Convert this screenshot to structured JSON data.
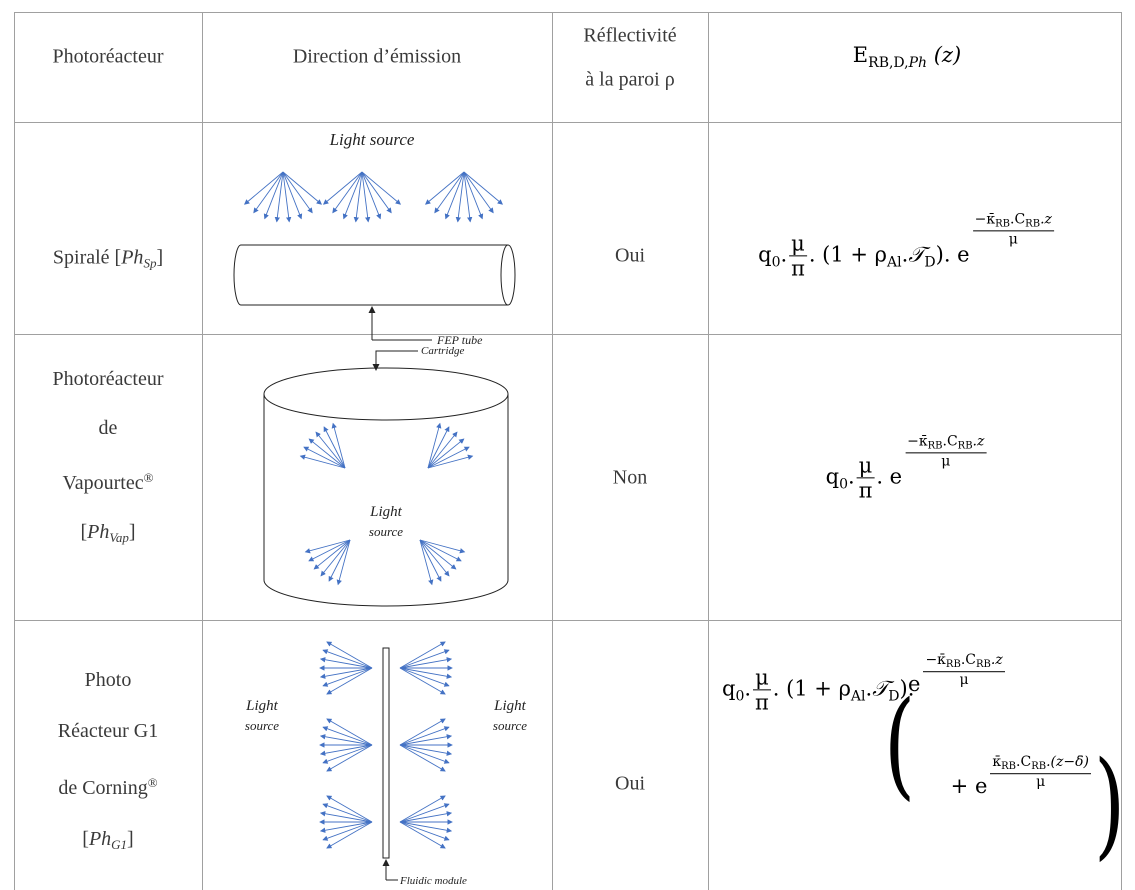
{
  "header": {
    "photoreactor": "Photoréacteur",
    "direction": "Direction d’émission",
    "reflectivity": [
      "Réflectivité",
      "à la paroi ρ"
    ],
    "irradiance": {
      "symbol": "E",
      "subscript": "RB,D,",
      "subscript_italic": "Ph",
      "argument": "(z)"
    }
  },
  "rows": [
    {
      "name_lines": [
        "Spiralé"
      ],
      "code_open": "[",
      "code": "Ph",
      "code_sub": "Sp",
      "code_close": "]",
      "diagram": {
        "light_source": "Light source",
        "tube": "FEP tube"
      },
      "reflective": "Oui",
      "formula": {
        "q": "q",
        "q_sub": "0",
        "dot": ".",
        "frac_num": "μ",
        "frac_den": "π",
        "mid": ". (1 + ρ",
        "rho_sub": "Al",
        "dot2": ".",
        "t": "𝒯",
        "t_sub": "D",
        "end": "). e",
        "exp_num": "−κ̄",
        "exp_sub1": "RB",
        "exp_c": ".C",
        "exp_sub2": "RB",
        "exp_z": ".z",
        "exp_den": "μ"
      }
    },
    {
      "name_lines": [
        "Photoréacteur",
        "de",
        "Vapourtec"
      ],
      "registered": "®",
      "code_open": "[",
      "code": "Ph",
      "code_sub": "Vap",
      "code_close": "]",
      "diagram": {
        "cartridge": "Cartridge",
        "light": "Light",
        "source": "source"
      },
      "reflective": "Non",
      "formula": {
        "q": "q",
        "q_sub": "0",
        "dot": ".",
        "frac_num": "μ",
        "frac_den": "π",
        "end": ". e",
        "exp_num": "−κ̄",
        "exp_sub1": "RB",
        "exp_c": ".C",
        "exp_sub2": "RB",
        "exp_z": ".z",
        "exp_den": "μ"
      }
    },
    {
      "name_lines": [
        "Photo",
        "Réacteur G1",
        "de Corning"
      ],
      "registered": "®",
      "code_open": "[",
      "code": "Ph",
      "code_sub": "G1",
      "code_close": "]",
      "diagram": {
        "light_left": "Light",
        "source_left": "source",
        "light_right": "Light",
        "source_right": "source",
        "module": "Fluidic module"
      },
      "reflective": "Oui",
      "formula": {
        "q": "q",
        "q_sub": "0",
        "dot": ".",
        "frac_num": "μ",
        "frac_den": "π",
        "mid": ". (1 + ρ",
        "rho_sub": "Al",
        "dot2": ".",
        "t": "𝒯",
        "t_sub": "D",
        "end": ").",
        "open": "(",
        "e1": "e",
        "exp_num": "−κ̄",
        "exp_sub1": "RB",
        "exp_c": ".C",
        "exp_sub2": "RB",
        "exp_z": ".z",
        "exp_den": "μ",
        "plus_e": "+ e",
        "exp2_num": "κ̄",
        "exp2_sub1": "RB",
        "exp2_c": ".C",
        "exp2_sub2": "RB",
        "exp2_rest": ".(z−δ̄)",
        "exp2_den": "μ",
        "close": ")"
      }
    }
  ]
}
